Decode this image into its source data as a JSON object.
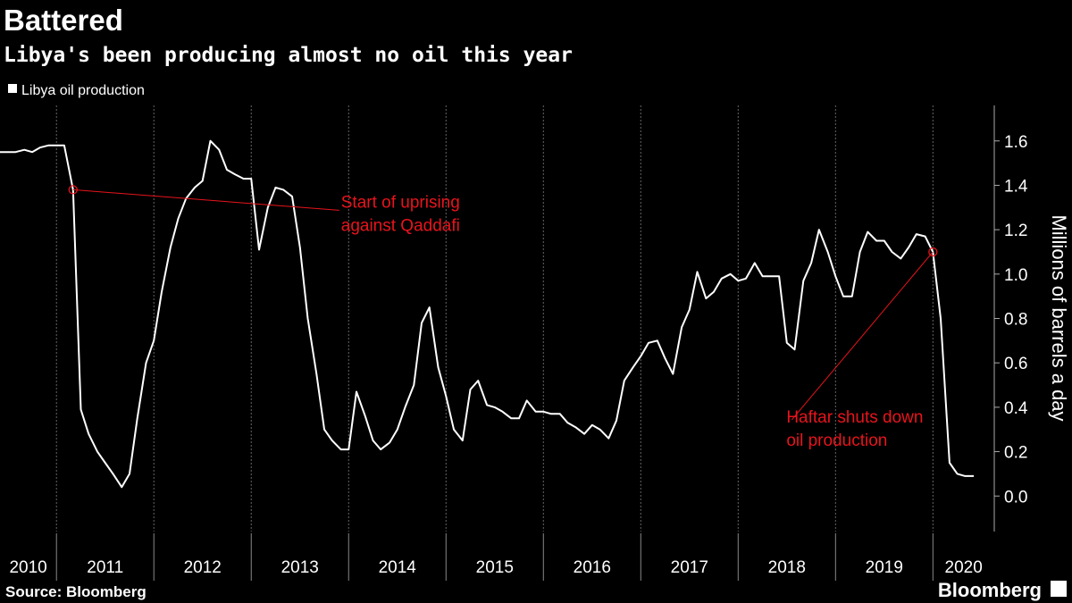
{
  "chart_data": {
    "type": "line",
    "title": "Battered",
    "subtitle": "Libya's been producing almost no oil this year",
    "source": "Source: Bloomberg",
    "brand": "Bloomberg",
    "y_axis_label": "Millions of barrels a day",
    "x": [
      2010.42,
      2010.5,
      2010.58,
      2010.67,
      2010.75,
      2010.83,
      2010.92,
      2011.0,
      2011.08,
      2011.17,
      2011.25,
      2011.33,
      2011.42,
      2011.5,
      2011.58,
      2011.67,
      2011.75,
      2011.83,
      2011.92,
      2012.0,
      2012.08,
      2012.17,
      2012.25,
      2012.33,
      2012.42,
      2012.5,
      2012.58,
      2012.67,
      2012.75,
      2012.83,
      2012.92,
      2013.0,
      2013.08,
      2013.17,
      2013.25,
      2013.33,
      2013.42,
      2013.5,
      2013.58,
      2013.67,
      2013.75,
      2013.83,
      2013.92,
      2014.0,
      2014.08,
      2014.17,
      2014.25,
      2014.33,
      2014.42,
      2014.5,
      2014.58,
      2014.67,
      2014.75,
      2014.83,
      2014.92,
      2015.0,
      2015.08,
      2015.17,
      2015.25,
      2015.33,
      2015.42,
      2015.5,
      2015.58,
      2015.67,
      2015.75,
      2015.83,
      2015.92,
      2016.0,
      2016.08,
      2016.17,
      2016.25,
      2016.33,
      2016.42,
      2016.5,
      2016.58,
      2016.67,
      2016.75,
      2016.83,
      2016.92,
      2017.0,
      2017.08,
      2017.17,
      2017.25,
      2017.33,
      2017.42,
      2017.5,
      2017.58,
      2017.67,
      2017.75,
      2017.83,
      2017.92,
      2018.0,
      2018.08,
      2018.17,
      2018.25,
      2018.33,
      2018.42,
      2018.5,
      2018.58,
      2018.67,
      2018.75,
      2018.83,
      2018.92,
      2019.0,
      2019.08,
      2019.17,
      2019.25,
      2019.33,
      2019.42,
      2019.5,
      2019.58,
      2019.67,
      2019.75,
      2019.83,
      2019.92,
      2020.0,
      2020.08,
      2020.17,
      2020.25,
      2020.33,
      2020.42
    ],
    "series": [
      {
        "name": "Libya oil production",
        "color": "#ffffff",
        "values": [
          1.55,
          1.55,
          1.55,
          1.56,
          1.55,
          1.57,
          1.58,
          1.58,
          1.58,
          1.38,
          0.39,
          0.28,
          0.2,
          0.15,
          0.1,
          0.04,
          0.1,
          0.35,
          0.6,
          0.7,
          0.92,
          1.12,
          1.25,
          1.34,
          1.39,
          1.42,
          1.6,
          1.56,
          1.47,
          1.45,
          1.43,
          1.43,
          1.11,
          1.3,
          1.39,
          1.38,
          1.35,
          1.12,
          0.8,
          0.55,
          0.3,
          0.25,
          0.21,
          0.21,
          0.47,
          0.36,
          0.25,
          0.21,
          0.24,
          0.3,
          0.4,
          0.5,
          0.78,
          0.85,
          0.58,
          0.45,
          0.3,
          0.25,
          0.48,
          0.52,
          0.41,
          0.4,
          0.38,
          0.35,
          0.35,
          0.43,
          0.38,
          0.38,
          0.37,
          0.37,
          0.33,
          0.31,
          0.28,
          0.32,
          0.3,
          0.26,
          0.34,
          0.52,
          0.58,
          0.63,
          0.69,
          0.7,
          0.62,
          0.55,
          0.76,
          0.84,
          1.01,
          0.89,
          0.92,
          0.98,
          1.0,
          0.97,
          0.98,
          1.05,
          0.99,
          0.99,
          0.99,
          0.69,
          0.66,
          0.97,
          1.05,
          1.2,
          1.1,
          0.99,
          0.9,
          0.9,
          1.1,
          1.19,
          1.15,
          1.15,
          1.1,
          1.07,
          1.12,
          1.18,
          1.17,
          1.1,
          0.8,
          0.15,
          0.1,
          0.09,
          0.09
        ]
      }
    ],
    "annotations": [
      {
        "lines": [
          "Start of uprising",
          "against Qaddafi"
        ],
        "x": 2011.17,
        "y": 1.38
      },
      {
        "lines": [
          "Haftar shuts down",
          "oil production"
        ],
        "x": 2020.0,
        "y": 1.1
      }
    ],
    "annotation_color": "#e8141c",
    "xlim": [
      2010.42,
      2020.63
    ],
    "xticks": [
      2011,
      2012,
      2013,
      2014,
      2015,
      2016,
      2017,
      2018,
      2019,
      2020
    ],
    "year_labels": [
      2010,
      2011,
      2012,
      2013,
      2014,
      2015,
      2016,
      2017,
      2018,
      2019,
      2020
    ],
    "ylim": [
      -0.16,
      1.76
    ],
    "yticks": [
      {
        "value": 0,
        "label": "0.0"
      },
      0.2,
      0.4,
      0.6,
      0.8,
      {
        "value": 1,
        "label": "1.0"
      },
      1.2,
      1.4,
      1.6
    ],
    "grid": true,
    "legend": "top-left"
  }
}
